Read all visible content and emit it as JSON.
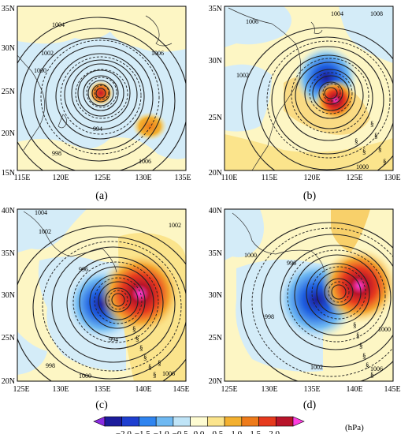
{
  "panels": [
    {
      "label": "(a)",
      "lon_ticks": [
        "115E",
        "120E",
        "125E",
        "130E",
        "135E"
      ],
      "lat_ticks": [
        "35N",
        "30N",
        "25N",
        "20N",
        "15N"
      ],
      "contour_labels": [
        "1004",
        "1002",
        "1000",
        "1006",
        "994",
        "998",
        "1006"
      ]
    },
    {
      "label": "(b)",
      "lon_ticks": [
        "110E",
        "115E",
        "120E",
        "125E",
        "130E"
      ],
      "lat_ticks": [
        "35N",
        "30N",
        "25N",
        "20N"
      ],
      "contour_labels": [
        "1004",
        "1006",
        "1002",
        "1008",
        "1000"
      ]
    },
    {
      "label": "(c)",
      "lon_ticks": [
        "125E",
        "130E",
        "135E",
        "140E",
        "145E"
      ],
      "lat_ticks": [
        "40N",
        "35N",
        "30N",
        "25N",
        "20N"
      ],
      "contour_labels": [
        "1004",
        "1002",
        "996",
        "994",
        "1002",
        "998",
        "1000",
        "1006"
      ]
    },
    {
      "label": "(d)",
      "lon_ticks": [
        "125E",
        "130E",
        "135E",
        "140E",
        "145E"
      ],
      "lat_ticks": [
        "40N",
        "35N",
        "30N",
        "25N",
        "20N"
      ],
      "contour_labels": [
        "1000",
        "996",
        "998",
        "1002",
        "1006",
        "1000"
      ]
    }
  ],
  "colorbar": {
    "ticks": [
      "−2.0",
      "−1.5",
      "−1.0",
      "−0.5",
      "0.0",
      "0.5",
      "1.0",
      "1.5",
      "2.0"
    ],
    "unit": "(hPa)",
    "colors": [
      "#8a2be2",
      "#1c1c9c",
      "#1e3fd0",
      "#2f84ef",
      "#6fb9f2",
      "#bfe4f7",
      "#fefcd2",
      "#fbe48c",
      "#f3b02f",
      "#ee7b1a",
      "#e63a1d",
      "#b8142a",
      "#ff3ee0"
    ]
  },
  "colors": {
    "land_yellow": "#fdf6c4",
    "sea_blue": "#d4ecf8",
    "contour": "#222222"
  }
}
